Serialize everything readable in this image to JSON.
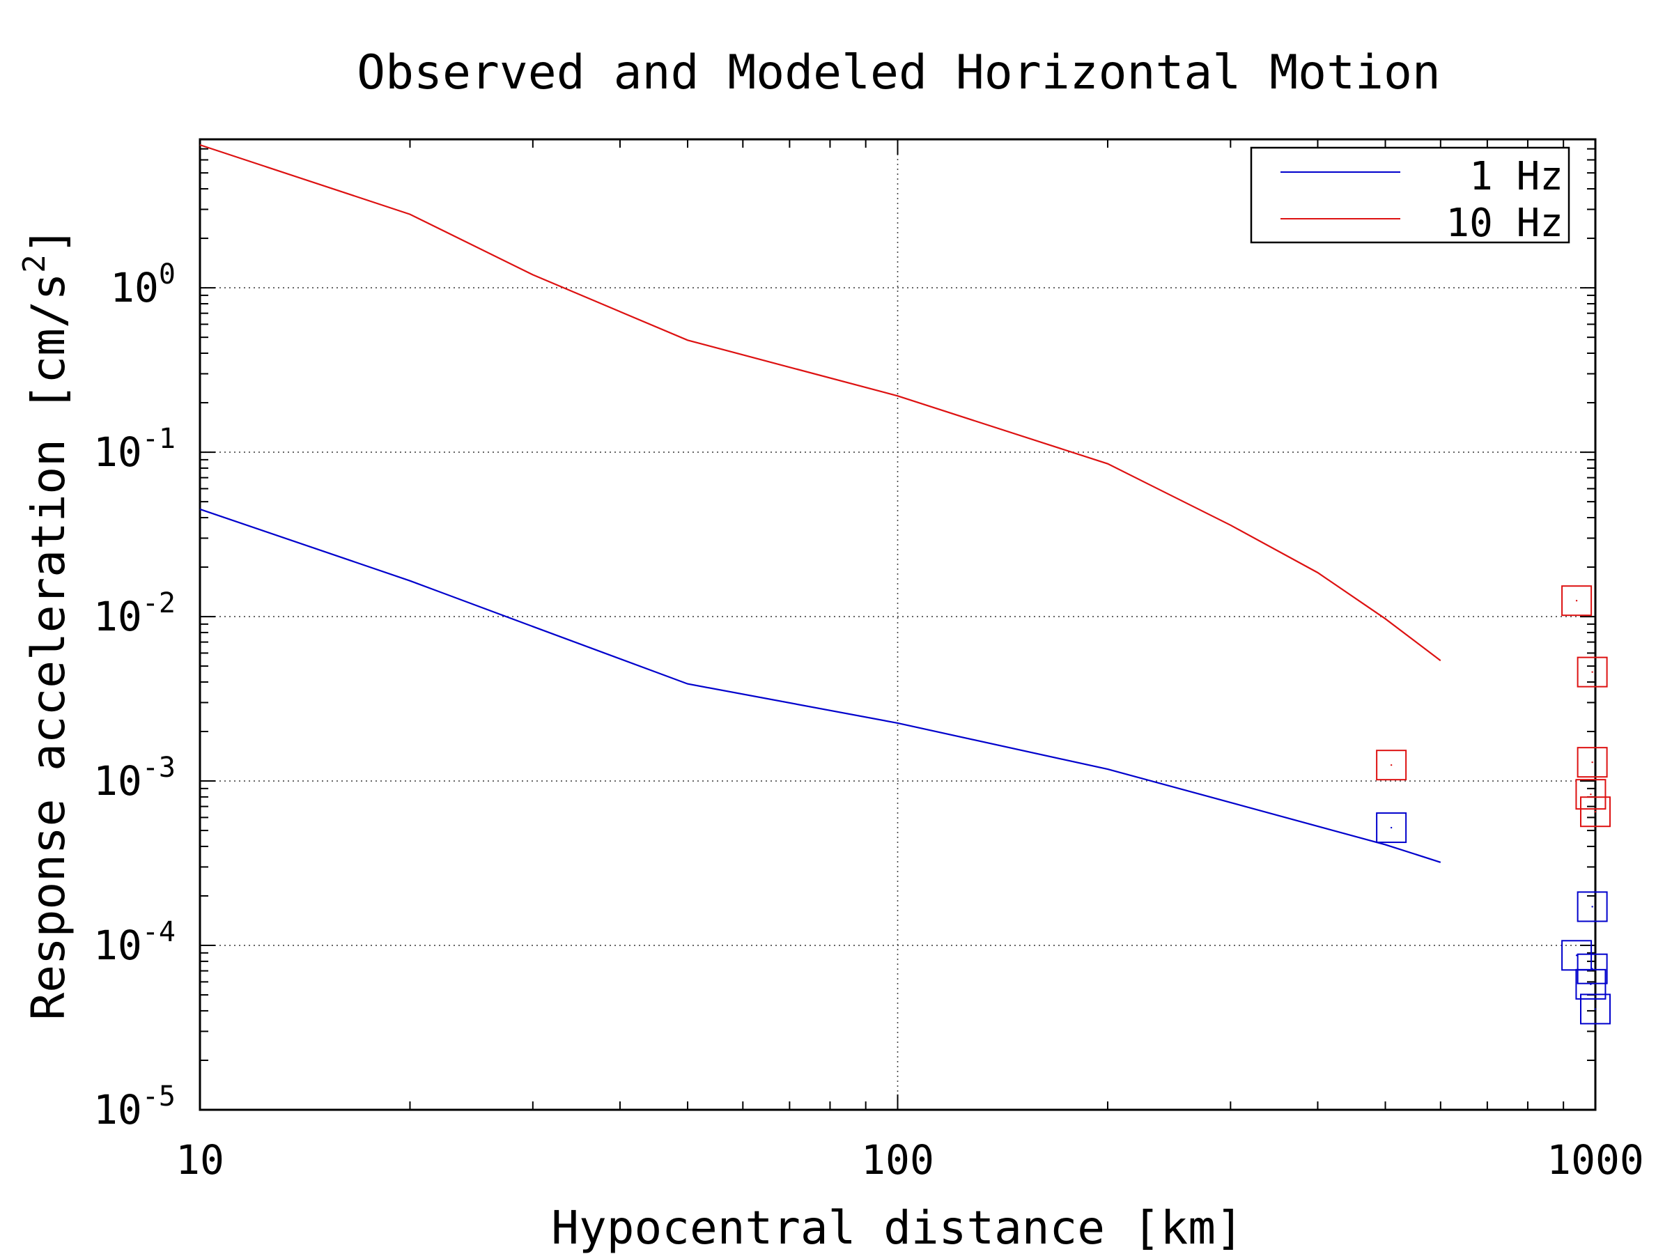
{
  "chart_data": {
    "type": "line",
    "title": "Observed and Modeled Horizontal Motion",
    "xlabel": "Hypocentral distance [km]",
    "ylabel": "Response acceleration [cm/s",
    "ylabel_superscript": "2",
    "ylabel_suffix": "]",
    "x_scale": "log",
    "y_scale": "log",
    "xlim": [
      10,
      1000
    ],
    "ylim": [
      1e-05,
      8
    ],
    "x_ticks": [
      {
        "value": 10,
        "label": "10"
      },
      {
        "value": 100,
        "label": "100"
      },
      {
        "value": 1000,
        "label": "1000"
      }
    ],
    "y_ticks": [
      {
        "value": 1e-05,
        "base": "10",
        "exp": "-5"
      },
      {
        "value": 0.0001,
        "base": "10",
        "exp": "-4"
      },
      {
        "value": 0.001,
        "base": "10",
        "exp": "-3"
      },
      {
        "value": 0.01,
        "base": "10",
        "exp": "-2"
      },
      {
        "value": 0.1,
        "base": "10",
        "exp": "-1"
      },
      {
        "value": 1,
        "base": "10",
        "exp": "0"
      }
    ],
    "grid": "dotted at major decades",
    "legend_position": "top-right",
    "series": [
      {
        "name": "1 Hz",
        "color": "#0000cc",
        "x": [
          10,
          20,
          30,
          50,
          100,
          200,
          300,
          400,
          500,
          600
        ],
        "y": [
          0.045,
          0.0165,
          0.0087,
          0.0039,
          0.00225,
          0.00118,
          0.00074,
          0.00053,
          0.00041,
          0.00032
        ]
      },
      {
        "name": "10 Hz",
        "color": "#dd1111",
        "x": [
          10,
          20,
          30,
          50,
          100,
          200,
          300,
          400,
          500,
          600
        ],
        "y": [
          7.4,
          2.8,
          1.2,
          0.48,
          0.22,
          0.085,
          0.036,
          0.0185,
          0.0097,
          0.0054
        ]
      }
    ],
    "observed_points": [
      {
        "series": "10 Hz",
        "color": "#dd1111",
        "x": 510,
        "y": 0.00125
      },
      {
        "series": "10 Hz",
        "color": "#dd1111",
        "x": 940,
        "y": 0.0125
      },
      {
        "series": "10 Hz",
        "color": "#dd1111",
        "x": 990,
        "y": 0.0046
      },
      {
        "series": "10 Hz",
        "color": "#dd1111",
        "x": 990,
        "y": 0.0013
      },
      {
        "series": "10 Hz",
        "color": "#dd1111",
        "x": 985,
        "y": 0.00083
      },
      {
        "series": "10 Hz",
        "color": "#dd1111",
        "x": 1000,
        "y": 0.00065
      },
      {
        "series": "1 Hz",
        "color": "#0000cc",
        "x": 510,
        "y": 0.00052
      },
      {
        "series": "1 Hz",
        "color": "#0000cc",
        "x": 990,
        "y": 0.000172
      },
      {
        "series": "1 Hz",
        "color": "#0000cc",
        "x": 940,
        "y": 8.7e-05
      },
      {
        "series": "1 Hz",
        "color": "#0000cc",
        "x": 990,
        "y": 7.2e-05
      },
      {
        "series": "1 Hz",
        "color": "#0000cc",
        "x": 985,
        "y": 5.8e-05
      },
      {
        "series": "1 Hz",
        "color": "#0000cc",
        "x": 1000,
        "y": 4.1e-05
      }
    ]
  }
}
